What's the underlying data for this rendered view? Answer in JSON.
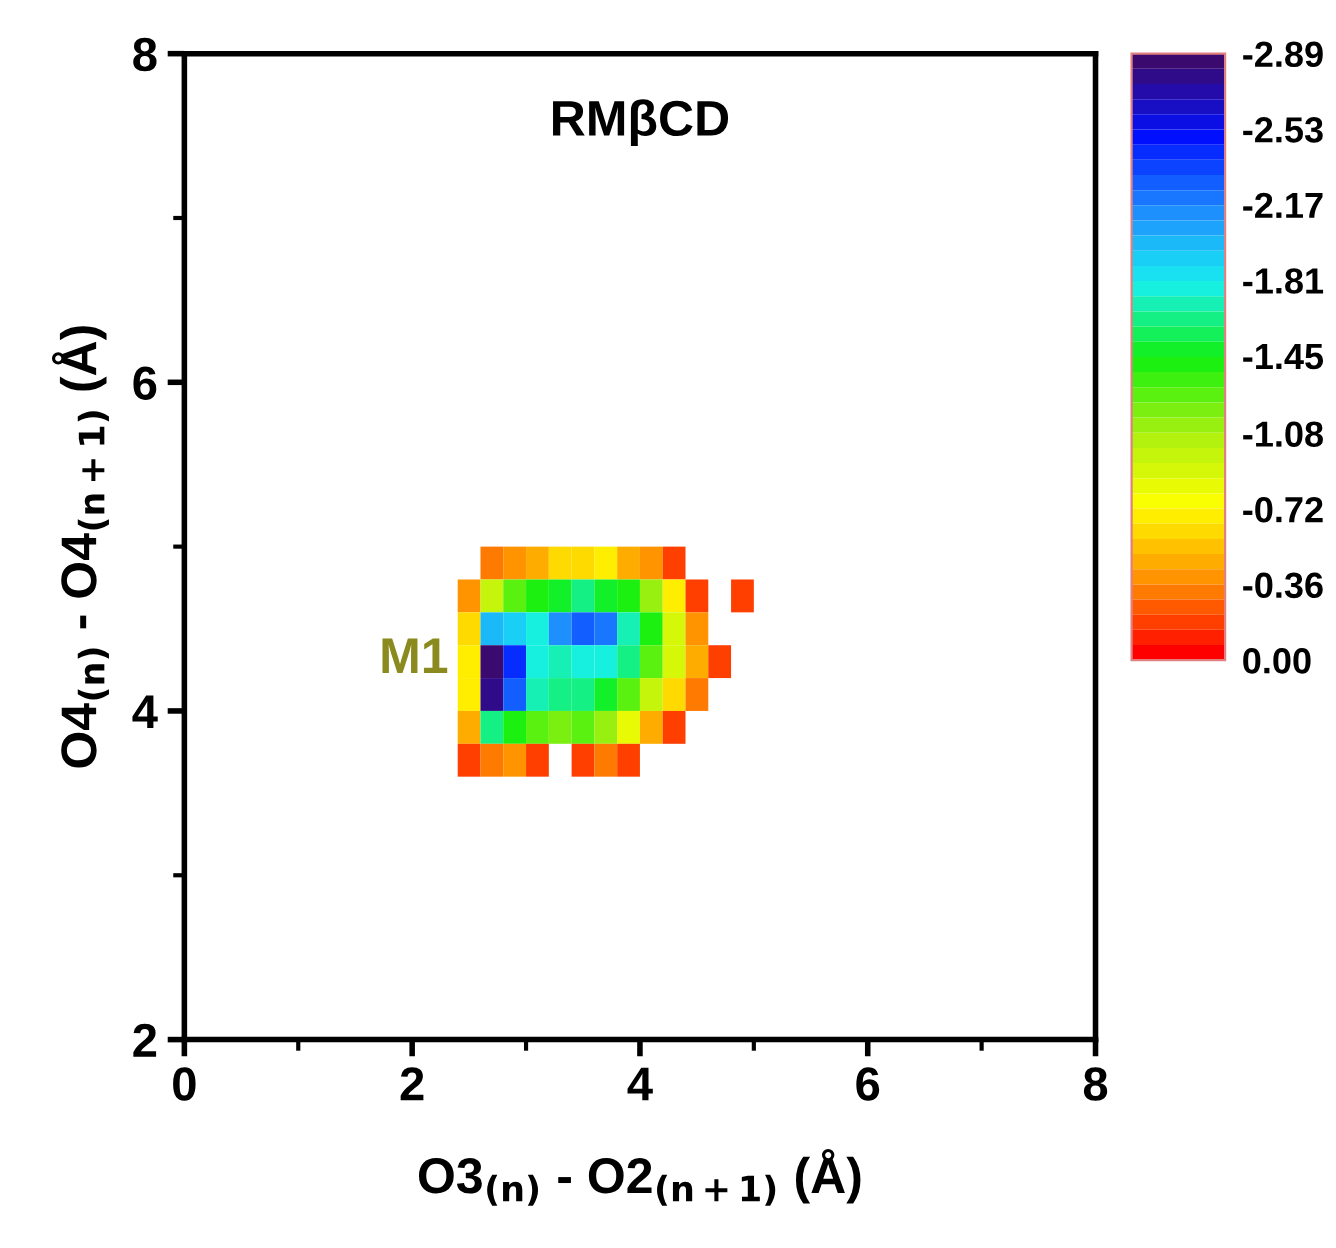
{
  "chart_data": {
    "type": "heatmap",
    "title": "RMβCD",
    "xlabel": "O3$_{(n)}$ - O2$_{(n+1)}$ (Å)",
    "ylabel": "O4$_{(n)}$ - O4$_{(n+1)}$ (Å)",
    "annotations": [
      "M1"
    ],
    "x": [
      2.5,
      2.7,
      2.9,
      3.1,
      3.3,
      3.5,
      3.7,
      3.9,
      4.1,
      4.3,
      4.5,
      4.7,
      4.9
    ],
    "y": [
      4.9,
      4.7,
      4.5,
      4.3,
      4.1,
      3.9,
      3.7
    ],
    "cells": [
      [
        null,
        -0.3,
        -0.4,
        -0.5,
        -0.6,
        -0.6,
        -0.7,
        -0.5,
        -0.4,
        -0.2,
        null,
        null,
        null
      ],
      [
        -0.4,
        -1.0,
        -1.3,
        -1.4,
        -1.5,
        -1.6,
        -1.5,
        -1.4,
        -1.1,
        -0.7,
        -0.2,
        null,
        -0.2
      ],
      [
        -0.6,
        -2.0,
        -1.9,
        -1.8,
        -2.1,
        -2.3,
        -2.2,
        -1.7,
        -1.4,
        -0.9,
        -0.4,
        null,
        null
      ],
      [
        -0.7,
        -2.89,
        -2.4,
        -1.8,
        -1.7,
        -1.8,
        -1.8,
        -1.6,
        -1.3,
        -0.9,
        -0.5,
        -0.2,
        null
      ],
      [
        -0.7,
        -2.8,
        -2.3,
        -1.7,
        -1.6,
        -1.6,
        -1.5,
        -1.3,
        -1.0,
        -0.6,
        -0.3,
        null,
        null
      ],
      [
        -0.5,
        -1.6,
        -1.4,
        -1.3,
        -1.2,
        -1.3,
        -1.1,
        -0.8,
        -0.5,
        -0.2,
        null,
        null,
        null
      ],
      [
        -0.2,
        -0.3,
        -0.4,
        -0.2,
        null,
        -0.2,
        -0.3,
        -0.2,
        null,
        null,
        null,
        null,
        null
      ]
    ],
    "xlim": [
      0,
      8
    ],
    "ylim": [
      2,
      8
    ],
    "xticks": [
      0,
      2,
      4,
      6,
      8
    ],
    "yticks": [
      2,
      4,
      6,
      8
    ],
    "clim": [
      0,
      -2.89
    ],
    "cticks": [
      {
        "value": -2.89,
        "label": "-2.89"
      },
      {
        "value": -2.53,
        "label": "-2.53"
      },
      {
        "value": -2.17,
        "label": "-2.17"
      },
      {
        "value": -1.81,
        "label": "-1.81"
      },
      {
        "value": -1.45,
        "label": "-1.45"
      },
      {
        "value": -1.08,
        "label": "-1.08"
      },
      {
        "value": -0.72,
        "label": "-0.72"
      },
      {
        "value": -0.36,
        "label": "-0.36"
      },
      {
        "value": 0,
        "label": "0.00"
      }
    ],
    "grid": false
  }
}
